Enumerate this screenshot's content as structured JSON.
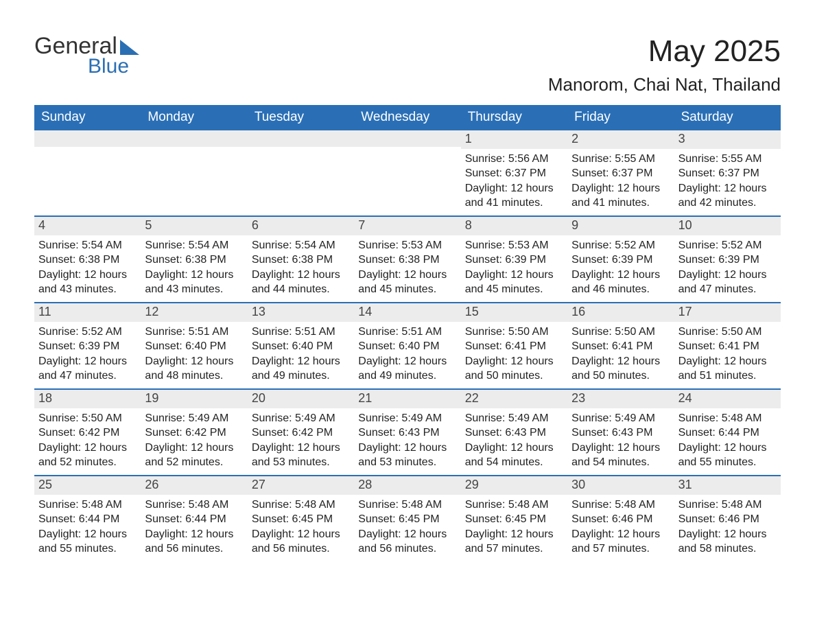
{
  "logo": {
    "line1": "General",
    "line2": "Blue",
    "accent_color": "#2b6fb3"
  },
  "header": {
    "title": "May 2025",
    "location": "Manorom, Chai Nat, Thailand"
  },
  "colors": {
    "header_bg": "#2a6fb6",
    "header_text": "#ffffff",
    "date_bar_bg": "#ececec",
    "date_bar_text": "#444444",
    "rule": "#2a6fb6",
    "body_text": "#222222",
    "page_bg": "#ffffff"
  },
  "typography": {
    "title_fontsize": 44,
    "location_fontsize": 26,
    "header_fontsize": 19,
    "date_fontsize": 18,
    "body_fontsize": 16,
    "font_family": "Arial"
  },
  "calendar": {
    "type": "table",
    "columns": [
      "Sunday",
      "Monday",
      "Tuesday",
      "Wednesday",
      "Thursday",
      "Friday",
      "Saturday"
    ],
    "weeks": [
      [
        {
          "date": "",
          "sunrise": "",
          "sunset": "",
          "daylight": ""
        },
        {
          "date": "",
          "sunrise": "",
          "sunset": "",
          "daylight": ""
        },
        {
          "date": "",
          "sunrise": "",
          "sunset": "",
          "daylight": ""
        },
        {
          "date": "",
          "sunrise": "",
          "sunset": "",
          "daylight": ""
        },
        {
          "date": "1",
          "sunrise": "Sunrise: 5:56 AM",
          "sunset": "Sunset: 6:37 PM",
          "daylight": "Daylight: 12 hours and 41 minutes."
        },
        {
          "date": "2",
          "sunrise": "Sunrise: 5:55 AM",
          "sunset": "Sunset: 6:37 PM",
          "daylight": "Daylight: 12 hours and 41 minutes."
        },
        {
          "date": "3",
          "sunrise": "Sunrise: 5:55 AM",
          "sunset": "Sunset: 6:37 PM",
          "daylight": "Daylight: 12 hours and 42 minutes."
        }
      ],
      [
        {
          "date": "4",
          "sunrise": "Sunrise: 5:54 AM",
          "sunset": "Sunset: 6:38 PM",
          "daylight": "Daylight: 12 hours and 43 minutes."
        },
        {
          "date": "5",
          "sunrise": "Sunrise: 5:54 AM",
          "sunset": "Sunset: 6:38 PM",
          "daylight": "Daylight: 12 hours and 43 minutes."
        },
        {
          "date": "6",
          "sunrise": "Sunrise: 5:54 AM",
          "sunset": "Sunset: 6:38 PM",
          "daylight": "Daylight: 12 hours and 44 minutes."
        },
        {
          "date": "7",
          "sunrise": "Sunrise: 5:53 AM",
          "sunset": "Sunset: 6:38 PM",
          "daylight": "Daylight: 12 hours and 45 minutes."
        },
        {
          "date": "8",
          "sunrise": "Sunrise: 5:53 AM",
          "sunset": "Sunset: 6:39 PM",
          "daylight": "Daylight: 12 hours and 45 minutes."
        },
        {
          "date": "9",
          "sunrise": "Sunrise: 5:52 AM",
          "sunset": "Sunset: 6:39 PM",
          "daylight": "Daylight: 12 hours and 46 minutes."
        },
        {
          "date": "10",
          "sunrise": "Sunrise: 5:52 AM",
          "sunset": "Sunset: 6:39 PM",
          "daylight": "Daylight: 12 hours and 47 minutes."
        }
      ],
      [
        {
          "date": "11",
          "sunrise": "Sunrise: 5:52 AM",
          "sunset": "Sunset: 6:39 PM",
          "daylight": "Daylight: 12 hours and 47 minutes."
        },
        {
          "date": "12",
          "sunrise": "Sunrise: 5:51 AM",
          "sunset": "Sunset: 6:40 PM",
          "daylight": "Daylight: 12 hours and 48 minutes."
        },
        {
          "date": "13",
          "sunrise": "Sunrise: 5:51 AM",
          "sunset": "Sunset: 6:40 PM",
          "daylight": "Daylight: 12 hours and 49 minutes."
        },
        {
          "date": "14",
          "sunrise": "Sunrise: 5:51 AM",
          "sunset": "Sunset: 6:40 PM",
          "daylight": "Daylight: 12 hours and 49 minutes."
        },
        {
          "date": "15",
          "sunrise": "Sunrise: 5:50 AM",
          "sunset": "Sunset: 6:41 PM",
          "daylight": "Daylight: 12 hours and 50 minutes."
        },
        {
          "date": "16",
          "sunrise": "Sunrise: 5:50 AM",
          "sunset": "Sunset: 6:41 PM",
          "daylight": "Daylight: 12 hours and 50 minutes."
        },
        {
          "date": "17",
          "sunrise": "Sunrise: 5:50 AM",
          "sunset": "Sunset: 6:41 PM",
          "daylight": "Daylight: 12 hours and 51 minutes."
        }
      ],
      [
        {
          "date": "18",
          "sunrise": "Sunrise: 5:50 AM",
          "sunset": "Sunset: 6:42 PM",
          "daylight": "Daylight: 12 hours and 52 minutes."
        },
        {
          "date": "19",
          "sunrise": "Sunrise: 5:49 AM",
          "sunset": "Sunset: 6:42 PM",
          "daylight": "Daylight: 12 hours and 52 minutes."
        },
        {
          "date": "20",
          "sunrise": "Sunrise: 5:49 AM",
          "sunset": "Sunset: 6:42 PM",
          "daylight": "Daylight: 12 hours and 53 minutes."
        },
        {
          "date": "21",
          "sunrise": "Sunrise: 5:49 AM",
          "sunset": "Sunset: 6:43 PM",
          "daylight": "Daylight: 12 hours and 53 minutes."
        },
        {
          "date": "22",
          "sunrise": "Sunrise: 5:49 AM",
          "sunset": "Sunset: 6:43 PM",
          "daylight": "Daylight: 12 hours and 54 minutes."
        },
        {
          "date": "23",
          "sunrise": "Sunrise: 5:49 AM",
          "sunset": "Sunset: 6:43 PM",
          "daylight": "Daylight: 12 hours and 54 minutes."
        },
        {
          "date": "24",
          "sunrise": "Sunrise: 5:48 AM",
          "sunset": "Sunset: 6:44 PM",
          "daylight": "Daylight: 12 hours and 55 minutes."
        }
      ],
      [
        {
          "date": "25",
          "sunrise": "Sunrise: 5:48 AM",
          "sunset": "Sunset: 6:44 PM",
          "daylight": "Daylight: 12 hours and 55 minutes."
        },
        {
          "date": "26",
          "sunrise": "Sunrise: 5:48 AM",
          "sunset": "Sunset: 6:44 PM",
          "daylight": "Daylight: 12 hours and 56 minutes."
        },
        {
          "date": "27",
          "sunrise": "Sunrise: 5:48 AM",
          "sunset": "Sunset: 6:45 PM",
          "daylight": "Daylight: 12 hours and 56 minutes."
        },
        {
          "date": "28",
          "sunrise": "Sunrise: 5:48 AM",
          "sunset": "Sunset: 6:45 PM",
          "daylight": "Daylight: 12 hours and 56 minutes."
        },
        {
          "date": "29",
          "sunrise": "Sunrise: 5:48 AM",
          "sunset": "Sunset: 6:45 PM",
          "daylight": "Daylight: 12 hours and 57 minutes."
        },
        {
          "date": "30",
          "sunrise": "Sunrise: 5:48 AM",
          "sunset": "Sunset: 6:46 PM",
          "daylight": "Daylight: 12 hours and 57 minutes."
        },
        {
          "date": "31",
          "sunrise": "Sunrise: 5:48 AM",
          "sunset": "Sunset: 6:46 PM",
          "daylight": "Daylight: 12 hours and 58 minutes."
        }
      ]
    ]
  }
}
